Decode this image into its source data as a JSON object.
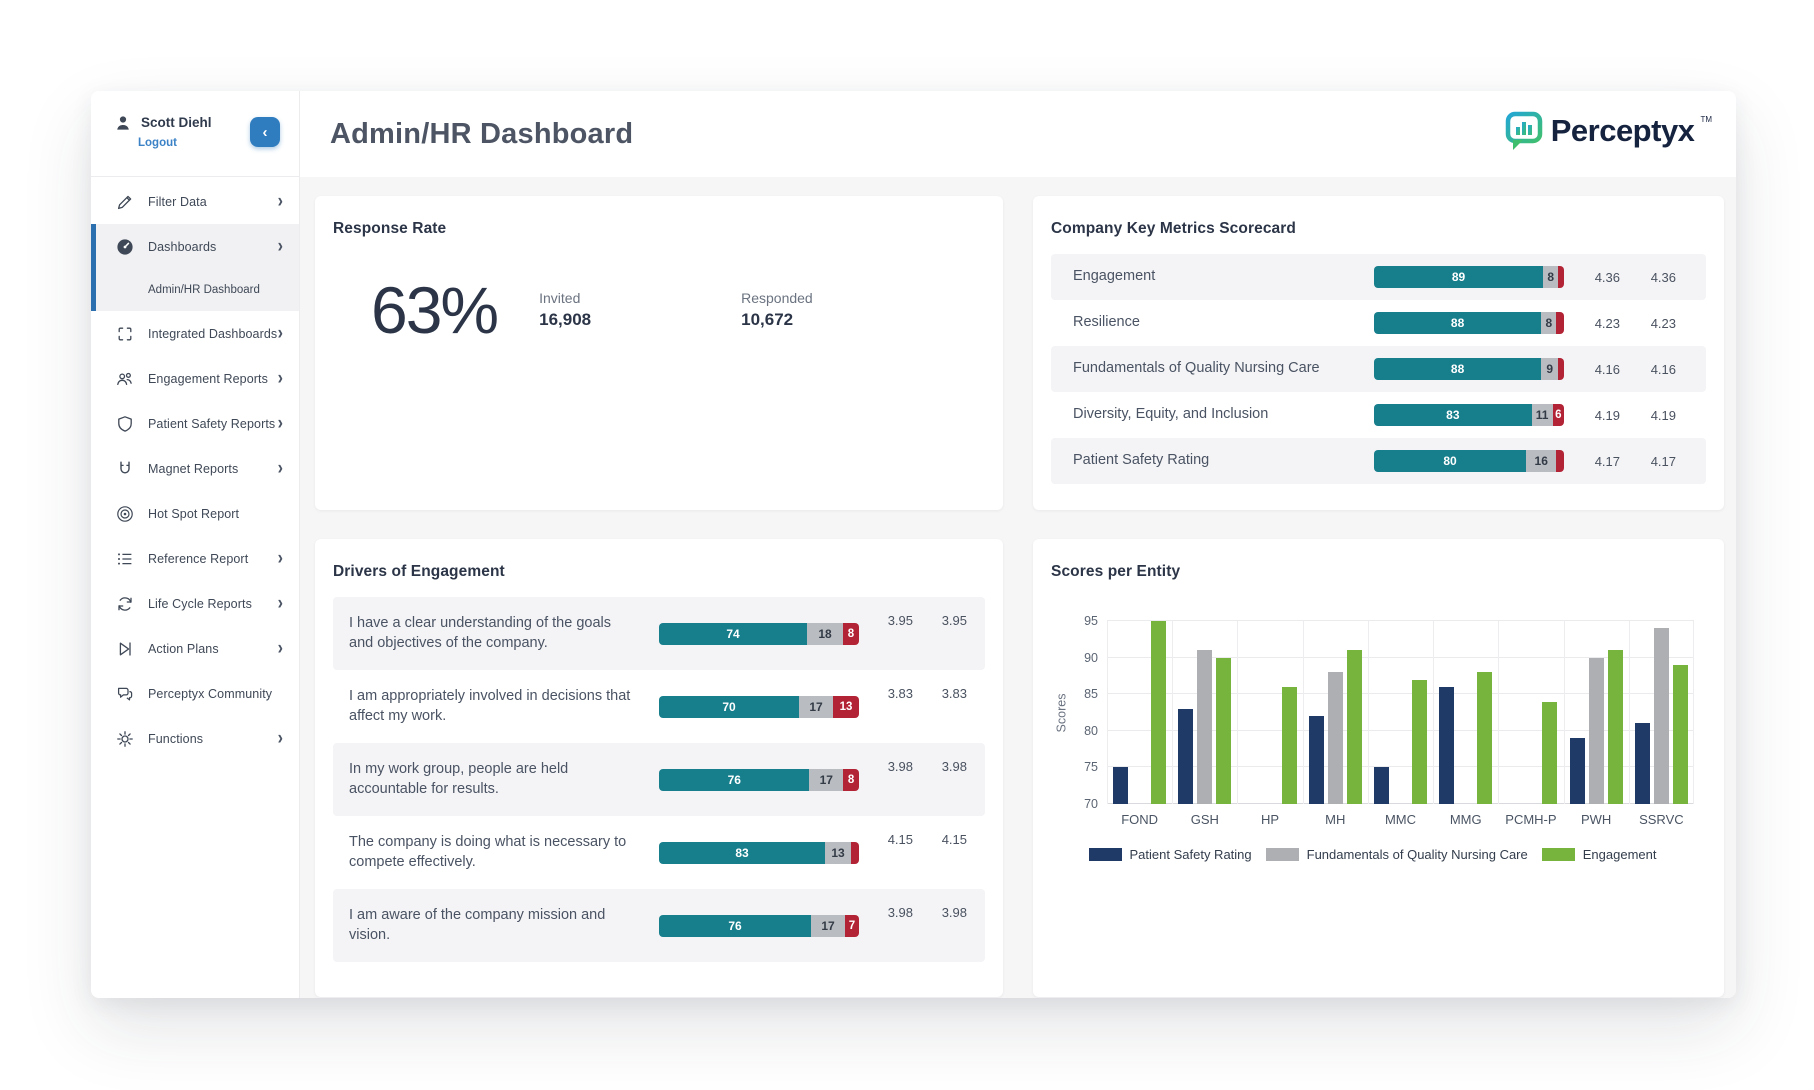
{
  "header": {
    "title": "Admin/HR Dashboard",
    "logo_text": "Perceptyx",
    "logo_tm": "TM"
  },
  "sidebar": {
    "user": {
      "name": "Scott Diehl",
      "logout_label": "Logout"
    },
    "items": [
      {
        "icon": "pencil-icon",
        "label": "Filter Data",
        "chevron": true,
        "active": false
      },
      {
        "icon": "dashboard-icon",
        "label": "Dashboards",
        "chevron": true,
        "active": true,
        "sub_item": "Admin/HR Dashboard"
      },
      {
        "icon": "integrated-icon",
        "label": "Integrated Dashboards",
        "chevron": true,
        "active": false
      },
      {
        "icon": "people-icon",
        "label": "Engagement Reports",
        "chevron": true,
        "active": false
      },
      {
        "icon": "shield-icon",
        "label": "Patient Safety Reports",
        "chevron": true,
        "active": false
      },
      {
        "icon": "magnet-icon",
        "label": "Magnet Reports",
        "chevron": true,
        "active": false
      },
      {
        "icon": "target-icon",
        "label": "Hot Spot Report",
        "chevron": false,
        "active": false
      },
      {
        "icon": "list-icon",
        "label": "Reference Report",
        "chevron": true,
        "active": false
      },
      {
        "icon": "refresh-icon",
        "label": "Life Cycle Reports",
        "chevron": true,
        "active": false
      },
      {
        "icon": "flag-icon",
        "label": "Action Plans",
        "chevron": true,
        "active": false
      },
      {
        "icon": "chat-icon",
        "label": "Perceptyx Community",
        "chevron": false,
        "active": false
      },
      {
        "icon": "gear-icon",
        "label": "Functions",
        "chevron": true,
        "active": false
      }
    ]
  },
  "panels": {
    "response_rate": {
      "title": "Response Rate",
      "rate": "63%",
      "invited_label": "Invited",
      "invited_value": "16,908",
      "responded_label": "Responded",
      "responded_value": "10,672"
    },
    "scorecard": {
      "title": "Company Key Metrics Scorecard",
      "rows": [
        {
          "label": "Engagement",
          "fav": 89,
          "neu": 8,
          "unf": 3,
          "fav_label": "89",
          "neu_label": "8",
          "unf_label": "",
          "score1": "4.36",
          "score2": "4.36"
        },
        {
          "label": "Resilience",
          "fav": 88,
          "neu": 8,
          "unf": 4,
          "fav_label": "88",
          "neu_label": "8",
          "unf_label": "",
          "score1": "4.23",
          "score2": "4.23"
        },
        {
          "label": "Fundamentals of Quality Nursing Care",
          "fav": 88,
          "neu": 9,
          "unf": 3,
          "fav_label": "88",
          "neu_label": "9",
          "unf_label": "",
          "score1": "4.16",
          "score2": "4.16"
        },
        {
          "label": "Diversity, Equity, and Inclusion",
          "fav": 83,
          "neu": 11,
          "unf": 6,
          "fav_label": "83",
          "neu_label": "11",
          "unf_label": "6",
          "score1": "4.19",
          "score2": "4.19"
        },
        {
          "label": "Patient Safety Rating",
          "fav": 80,
          "neu": 16,
          "unf": 4,
          "fav_label": "80",
          "neu_label": "16",
          "unf_label": "",
          "score1": "4.17",
          "score2": "4.17"
        }
      ]
    },
    "drivers": {
      "title": "Drivers of Engagement",
      "rows": [
        {
          "label": "I have a clear understanding of the goals and objectives of the company.",
          "fav": 74,
          "neu": 18,
          "unf": 8,
          "fav_label": "74",
          "neu_label": "18",
          "unf_label": "8",
          "score1": "3.95",
          "score2": "3.95"
        },
        {
          "label": "I am appropriately involved in decisions that affect my work.",
          "fav": 70,
          "neu": 17,
          "unf": 13,
          "fav_label": "70",
          "neu_label": "17",
          "unf_label": "13",
          "score1": "3.83",
          "score2": "3.83"
        },
        {
          "label": "In my work group, people are held accountable for results.",
          "fav": 76,
          "neu": 17,
          "unf": 8,
          "fav_label": "76",
          "neu_label": "17",
          "unf_label": "8",
          "score1": "3.98",
          "score2": "3.98"
        },
        {
          "label": "The company is doing what is necessary to compete effectively.",
          "fav": 83,
          "neu": 13,
          "unf": 4,
          "fav_label": "83",
          "neu_label": "13",
          "unf_label": "",
          "score1": "4.15",
          "score2": "4.15"
        },
        {
          "label": "I am aware of the company mission and vision.",
          "fav": 76,
          "neu": 17,
          "unf": 7,
          "fav_label": "76",
          "neu_label": "17",
          "unf_label": "7",
          "score1": "3.98",
          "score2": "3.98"
        }
      ]
    }
  },
  "chart_data": {
    "type": "bar",
    "title": "Scores per Entity",
    "ylabel": "Scores",
    "ylim": [
      70,
      95
    ],
    "yticks": [
      70,
      75,
      80,
      85,
      90,
      95
    ],
    "grid": true,
    "legend_position": "bottom",
    "categories": [
      "FOND",
      "GSH",
      "HP",
      "MH",
      "MMC",
      "MMG",
      "PCMH-P",
      "PWH",
      "SSRVC"
    ],
    "series": [
      {
        "name": "Patient Safety Rating",
        "color": "#1F3A66",
        "values": [
          75,
          83,
          null,
          82,
          75,
          86,
          null,
          79,
          81
        ]
      },
      {
        "name": "Fundamentals of Quality Nursing Care",
        "color": "#ADAFB2",
        "values": [
          null,
          91,
          null,
          88,
          null,
          null,
          null,
          90,
          94
        ]
      },
      {
        "name": "Engagement",
        "color": "#76B43E",
        "values": [
          95,
          90,
          86,
          91,
          87,
          88,
          84,
          91,
          89
        ]
      }
    ]
  },
  "colors": {
    "favorable_teal": "#177E8C",
    "neutral_gray": "#B9BCC0",
    "unfavorable_red": "#B22335",
    "accent_blue": "#2F7CBF",
    "active_bar_blue": "#2C6FAE",
    "navy_text": "#2B3547"
  }
}
